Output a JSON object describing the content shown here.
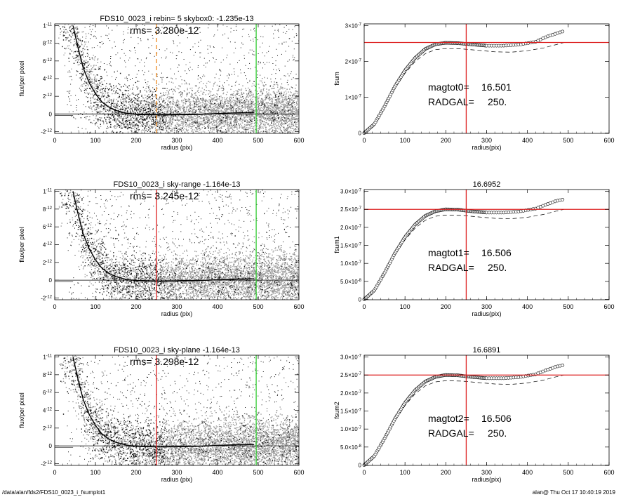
{
  "footer": {
    "path": "/data/alan/fds2/FDS10_0023_i_fsumplot1",
    "stamp": "alan@  Thu Oct 17 10:40:19 2019"
  },
  "colors": {
    "scatter_black": "#111111",
    "scatter_gray": "#9a9a9a",
    "red": "#dd2020",
    "green": "#33cc33",
    "orange": "#ee8c22"
  },
  "chart_data": [
    {
      "id": "left-1",
      "type": "scatter",
      "title": "FDS10_0023_i rebin= 5    skybox0: -1.235e-13",
      "annotation": "rms= 3.280e-12",
      "xlabel": "radius (pix)",
      "ylabel": "flux/per pixel",
      "xlim": [
        0,
        600
      ],
      "ylim": [
        -2.2e-12,
        1.02e-11
      ],
      "xticks": [
        0,
        100,
        200,
        300,
        400,
        500,
        600
      ],
      "yticks": [
        {
          "v": -2e-12,
          "m": "-2",
          "e": "-12"
        },
        {
          "v": 0,
          "m": "0",
          "e": ""
        },
        {
          "v": 2e-12,
          "m": "2",
          "e": "-12"
        },
        {
          "v": 4e-12,
          "m": "4",
          "e": "-12"
        },
        {
          "v": 6e-12,
          "m": "6",
          "e": "-12"
        },
        {
          "v": 8e-12,
          "m": "8",
          "e": "-12"
        },
        {
          "v": 1e-11,
          "m": "1",
          "e": "-11"
        }
      ],
      "profile": [
        [
          45,
          1e-11
        ],
        [
          55,
          7.9e-12
        ],
        [
          70,
          5.2e-12
        ],
        [
          85,
          3.5e-12
        ],
        [
          100,
          2.3e-12
        ],
        [
          115,
          1.4e-12
        ],
        [
          130,
          8.5e-13
        ],
        [
          150,
          4e-13
        ],
        [
          175,
          1e-13
        ],
        [
          200,
          -5e-14
        ],
        [
          230,
          -1e-13
        ],
        [
          260,
          -1.2e-13
        ],
        [
          300,
          -1e-13
        ],
        [
          350,
          -5e-14
        ],
        [
          400,
          5e-14
        ],
        [
          450,
          1.3e-13
        ],
        [
          490,
          1.5e-13
        ]
      ],
      "vlines": [
        {
          "x": 250,
          "color": "orange",
          "dash": true
        },
        {
          "x": 495,
          "color": "green",
          "dash": false
        }
      ]
    },
    {
      "id": "left-2",
      "type": "scatter",
      "title": "FDS10_0023_i sky-range -1.164e-13",
      "annotation": "rms= 3.245e-12",
      "xlabel": "radius (pix)",
      "ylabel": "flux/per pixel",
      "xlim": [
        0,
        600
      ],
      "ylim": [
        -2.2e-12,
        1.02e-11
      ],
      "xticks": [
        0,
        100,
        200,
        300,
        400,
        500,
        600
      ],
      "yticks": [
        {
          "v": -2e-12,
          "m": "-2",
          "e": "-12"
        },
        {
          "v": 0,
          "m": "0",
          "e": ""
        },
        {
          "v": 2e-12,
          "m": "2",
          "e": "-12"
        },
        {
          "v": 4e-12,
          "m": "4",
          "e": "-12"
        },
        {
          "v": 6e-12,
          "m": "6",
          "e": "-12"
        },
        {
          "v": 8e-12,
          "m": "8",
          "e": "-12"
        },
        {
          "v": 1e-11,
          "m": "1",
          "e": "-11"
        }
      ],
      "profile": [
        [
          45,
          1e-11
        ],
        [
          55,
          7.9e-12
        ],
        [
          70,
          5.2e-12
        ],
        [
          85,
          3.5e-12
        ],
        [
          100,
          2.3e-12
        ],
        [
          115,
          1.4e-12
        ],
        [
          130,
          8.5e-13
        ],
        [
          150,
          4e-13
        ],
        [
          175,
          1e-13
        ],
        [
          200,
          -5e-14
        ],
        [
          230,
          -1e-13
        ],
        [
          260,
          -1.2e-13
        ],
        [
          300,
          -1e-13
        ],
        [
          350,
          -5e-14
        ],
        [
          400,
          5e-14
        ],
        [
          450,
          1.3e-13
        ],
        [
          490,
          1.5e-13
        ]
      ],
      "vlines": [
        {
          "x": 250,
          "color": "red",
          "dash": false
        },
        {
          "x": 495,
          "color": "green",
          "dash": false
        }
      ]
    },
    {
      "id": "left-3",
      "type": "scatter",
      "title": "FDS10_0023_i sky-plane -1.164e-13",
      "annotation": "rms= 3.298e-12",
      "xlabel": "radius (pix)",
      "ylabel": "flux/per pixel",
      "xlim": [
        0,
        600
      ],
      "ylim": [
        -2.2e-12,
        1.02e-11
      ],
      "xticks": [
        0,
        100,
        200,
        300,
        400,
        500,
        600
      ],
      "yticks": [
        {
          "v": -2e-12,
          "m": "-2",
          "e": "-12"
        },
        {
          "v": 0,
          "m": "0",
          "e": ""
        },
        {
          "v": 2e-12,
          "m": "2",
          "e": "-12"
        },
        {
          "v": 4e-12,
          "m": "4",
          "e": "-12"
        },
        {
          "v": 6e-12,
          "m": "6",
          "e": "-12"
        },
        {
          "v": 8e-12,
          "m": "8",
          "e": "-12"
        },
        {
          "v": 1e-11,
          "m": "1",
          "e": "-11"
        }
      ],
      "profile": [
        [
          45,
          1e-11
        ],
        [
          55,
          7.9e-12
        ],
        [
          70,
          5.2e-12
        ],
        [
          85,
          3.5e-12
        ],
        [
          100,
          2.3e-12
        ],
        [
          115,
          1.4e-12
        ],
        [
          130,
          8.5e-13
        ],
        [
          150,
          4e-13
        ],
        [
          175,
          1e-13
        ],
        [
          200,
          -5e-14
        ],
        [
          230,
          -1e-13
        ],
        [
          260,
          -1.2e-13
        ],
        [
          300,
          -1e-13
        ],
        [
          350,
          -5e-14
        ],
        [
          400,
          5e-14
        ],
        [
          450,
          1.3e-13
        ],
        [
          490,
          1.5e-13
        ]
      ],
      "vlines": [
        {
          "x": 250,
          "color": "red",
          "dash": false
        },
        {
          "x": 495,
          "color": "green",
          "dash": false
        }
      ]
    },
    {
      "id": "right-1",
      "type": "line",
      "title": "",
      "xlabel": "radius(pix)",
      "ylabel": "fsum",
      "xlim": [
        0,
        600
      ],
      "ylim": [
        -1e-09,
        3.05e-07
      ],
      "xticks": [
        0,
        100,
        200,
        300,
        400,
        500,
        600
      ],
      "yticks": [
        {
          "v": 0,
          "m": "0",
          "e": ""
        },
        {
          "v": 1e-07,
          "m": "1×10",
          "e": "-7"
        },
        {
          "v": 2e-07,
          "m": "2×10",
          "e": "-7"
        },
        {
          "v": 3e-07,
          "m": "3×10",
          "e": "-7"
        }
      ],
      "cog": [
        [
          0,
          0
        ],
        [
          25,
          2.5e-08
        ],
        [
          50,
          7.5e-08
        ],
        [
          75,
          1.3e-07
        ],
        [
          100,
          1.75e-07
        ],
        [
          125,
          2.1e-07
        ],
        [
          150,
          2.35e-07
        ],
        [
          175,
          2.48e-07
        ],
        [
          200,
          2.52e-07
        ],
        [
          230,
          2.51e-07
        ],
        [
          260,
          2.48e-07
        ],
        [
          300,
          2.44e-07
        ],
        [
          340,
          2.44e-07
        ],
        [
          380,
          2.47e-07
        ],
        [
          420,
          2.55e-07
        ],
        [
          445,
          2.68e-07
        ],
        [
          470,
          2.78e-07
        ],
        [
          490,
          2.85e-07
        ]
      ],
      "dashed": [
        [
          0,
          0
        ],
        [
          25,
          2.4e-08
        ],
        [
          50,
          7.1e-08
        ],
        [
          75,
          1.24e-07
        ],
        [
          100,
          1.67e-07
        ],
        [
          125,
          2e-07
        ],
        [
          150,
          2.22e-07
        ],
        [
          175,
          2.33e-07
        ],
        [
          200,
          2.36e-07
        ],
        [
          240,
          2.35e-07
        ],
        [
          280,
          2.31e-07
        ],
        [
          320,
          2.27e-07
        ],
        [
          360,
          2.26e-07
        ],
        [
          400,
          2.3e-07
        ],
        [
          440,
          2.38e-07
        ],
        [
          470,
          2.47e-07
        ],
        [
          490,
          2.53e-07
        ]
      ],
      "hline": 2.53e-07,
      "vline": 250,
      "magtot_label": "magtot0=",
      "magtot_value": "16.501",
      "radgal_label": "RADGAL=",
      "radgal_value": "250."
    },
    {
      "id": "right-2",
      "type": "line",
      "title": "16.6952",
      "xlabel": "radius(pix)",
      "ylabel": "fsum1",
      "xlim": [
        0,
        600
      ],
      "ylim": [
        -1e-09,
        3.05e-07
      ],
      "xticks": [
        0,
        100,
        200,
        300,
        400,
        500,
        600
      ],
      "yticks": [
        {
          "v": 0,
          "m": "0",
          "e": ""
        },
        {
          "v": 5e-08,
          "m": "5.0×10",
          "e": "-8"
        },
        {
          "v": 1e-07,
          "m": "1.0×10",
          "e": "-7"
        },
        {
          "v": 1.5e-07,
          "m": "1.5×10",
          "e": "-7"
        },
        {
          "v": 2e-07,
          "m": "2.0×10",
          "e": "-7"
        },
        {
          "v": 2.5e-07,
          "m": "2.5×10",
          "e": "-7"
        },
        {
          "v": 3e-07,
          "m": "3.0×10",
          "e": "-7"
        }
      ],
      "cog": [
        [
          0,
          0
        ],
        [
          25,
          2.5e-08
        ],
        [
          50,
          7.4e-08
        ],
        [
          75,
          1.28e-07
        ],
        [
          100,
          1.73e-07
        ],
        [
          125,
          2.08e-07
        ],
        [
          150,
          2.32e-07
        ],
        [
          175,
          2.45e-07
        ],
        [
          200,
          2.5e-07
        ],
        [
          230,
          2.49e-07
        ],
        [
          260,
          2.45e-07
        ],
        [
          300,
          2.41e-07
        ],
        [
          340,
          2.41e-07
        ],
        [
          380,
          2.44e-07
        ],
        [
          420,
          2.52e-07
        ],
        [
          445,
          2.63e-07
        ],
        [
          470,
          2.73e-07
        ],
        [
          490,
          2.78e-07
        ]
      ],
      "dashed": [
        [
          0,
          0
        ],
        [
          25,
          2.4e-08
        ],
        [
          50,
          7e-08
        ],
        [
          75,
          1.22e-07
        ],
        [
          100,
          1.65e-07
        ],
        [
          125,
          1.98e-07
        ],
        [
          150,
          2.2e-07
        ],
        [
          175,
          2.31e-07
        ],
        [
          200,
          2.34e-07
        ],
        [
          240,
          2.33e-07
        ],
        [
          280,
          2.29e-07
        ],
        [
          320,
          2.25e-07
        ],
        [
          360,
          2.24e-07
        ],
        [
          400,
          2.28e-07
        ],
        [
          440,
          2.36e-07
        ],
        [
          470,
          2.45e-07
        ],
        [
          490,
          2.5e-07
        ]
      ],
      "hline": 2.5e-07,
      "vline": 250,
      "magtot_label": "magtot1=",
      "magtot_value": "16.506",
      "radgal_label": "RADGAL=",
      "radgal_value": "250."
    },
    {
      "id": "right-3",
      "type": "line",
      "title": "16.6891",
      "xlabel": "radius(pix)",
      "ylabel": "fsum2",
      "xlim": [
        0,
        600
      ],
      "ylim": [
        -1e-09,
        3.05e-07
      ],
      "xticks": [
        0,
        100,
        200,
        300,
        400,
        500,
        600
      ],
      "yticks": [
        {
          "v": 0,
          "m": "0",
          "e": ""
        },
        {
          "v": 5e-08,
          "m": "5.0×10",
          "e": "-8"
        },
        {
          "v": 1e-07,
          "m": "1.0×10",
          "e": "-7"
        },
        {
          "v": 1.5e-07,
          "m": "1.5×10",
          "e": "-7"
        },
        {
          "v": 2e-07,
          "m": "2.0×10",
          "e": "-7"
        },
        {
          "v": 2.5e-07,
          "m": "2.5×10",
          "e": "-7"
        },
        {
          "v": 3e-07,
          "m": "3.0×10",
          "e": "-7"
        }
      ],
      "cog": [
        [
          0,
          0
        ],
        [
          25,
          2.5e-08
        ],
        [
          50,
          7.4e-08
        ],
        [
          75,
          1.28e-07
        ],
        [
          100,
          1.73e-07
        ],
        [
          125,
          2.08e-07
        ],
        [
          150,
          2.32e-07
        ],
        [
          175,
          2.45e-07
        ],
        [
          200,
          2.5e-07
        ],
        [
          230,
          2.49e-07
        ],
        [
          260,
          2.45e-07
        ],
        [
          300,
          2.41e-07
        ],
        [
          340,
          2.41e-07
        ],
        [
          380,
          2.44e-07
        ],
        [
          420,
          2.52e-07
        ],
        [
          445,
          2.63e-07
        ],
        [
          470,
          2.73e-07
        ],
        [
          490,
          2.78e-07
        ]
      ],
      "dashed": [
        [
          0,
          0
        ],
        [
          25,
          2.4e-08
        ],
        [
          50,
          7e-08
        ],
        [
          75,
          1.22e-07
        ],
        [
          100,
          1.65e-07
        ],
        [
          125,
          1.98e-07
        ],
        [
          150,
          2.2e-07
        ],
        [
          175,
          2.31e-07
        ],
        [
          200,
          2.34e-07
        ],
        [
          240,
          2.33e-07
        ],
        [
          280,
          2.29e-07
        ],
        [
          320,
          2.25e-07
        ],
        [
          360,
          2.24e-07
        ],
        [
          400,
          2.28e-07
        ],
        [
          440,
          2.36e-07
        ],
        [
          470,
          2.45e-07
        ],
        [
          490,
          2.5e-07
        ]
      ],
      "hline": 2.5e-07,
      "vline": 250,
      "magtot_label": "magtot2=",
      "magtot_value": "16.506",
      "radgal_label": "RADGAL=",
      "radgal_value": "250."
    }
  ]
}
